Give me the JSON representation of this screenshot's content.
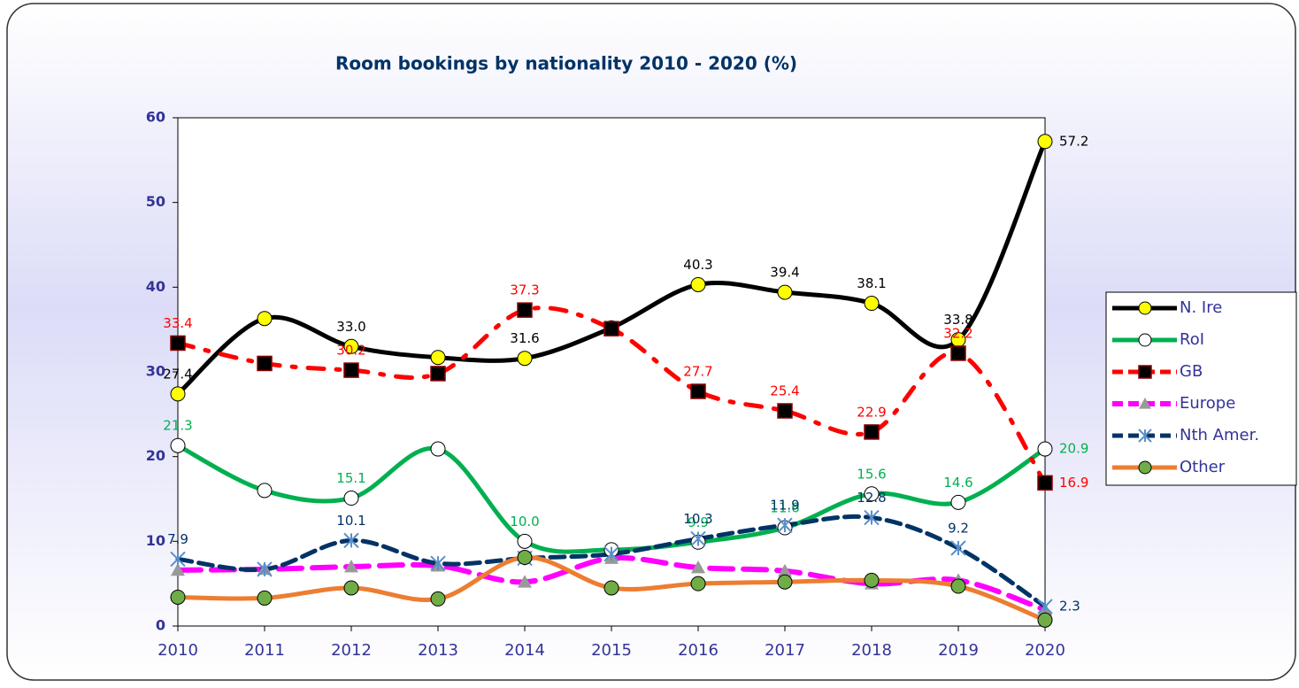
{
  "chart_data": {
    "type": "line",
    "title": "Room bookings by nationality 2010 - 2020 (%)",
    "categories": [
      "2010",
      "2011",
      "2012",
      "2013",
      "2014",
      "2015",
      "2016",
      "2017",
      "2018",
      "2019",
      "2020"
    ],
    "ylim": [
      0,
      60
    ],
    "yticks": [
      0,
      10,
      20,
      30,
      40,
      50,
      60
    ],
    "legend": "right",
    "smooth": true,
    "series": [
      {
        "name": "N. Ire",
        "color": "#000000",
        "marker": "circle",
        "marker_color": "#ffff00",
        "dash": "solid",
        "values": [
          27.4,
          36.3,
          33.0,
          31.7,
          31.6,
          35.2,
          40.3,
          39.4,
          38.1,
          33.8,
          57.2
        ],
        "value_labels": [
          "27.4",
          null,
          "33.0",
          null,
          "31.6",
          null,
          "40.3",
          "39.4",
          "38.1",
          "33.8",
          "57.2"
        ]
      },
      {
        "name": "RoI",
        "color": "#00b050",
        "marker": "circle",
        "marker_color": "#ffffff",
        "dash": "solid",
        "values": [
          21.3,
          16.0,
          15.1,
          20.9,
          10.0,
          9.0,
          9.9,
          11.6,
          15.6,
          14.6,
          20.9
        ],
        "value_labels": [
          "21.3",
          null,
          "15.1",
          null,
          "10.0",
          null,
          "9.9",
          "11.6",
          "15.6",
          "14.6",
          "20.9"
        ]
      },
      {
        "name": "GB",
        "color": "#ff0000",
        "marker": "square",
        "marker_color": "#000000",
        "dash": "dashdot",
        "values": [
          33.4,
          31.0,
          30.2,
          29.8,
          37.3,
          35.1,
          27.7,
          25.4,
          22.9,
          32.2,
          16.9
        ],
        "value_labels": [
          "33.4",
          null,
          "30.2",
          null,
          "37.3",
          null,
          "27.7",
          "25.4",
          "22.9",
          "32.2",
          "16.9"
        ]
      },
      {
        "name": "Europe",
        "color": "#ff00ff",
        "marker": "triangle",
        "marker_color": "#999999",
        "dash": "longdash",
        "values": [
          6.6,
          6.7,
          7.0,
          7.1,
          5.2,
          8.0,
          6.9,
          6.5,
          5.0,
          5.4,
          1.9
        ]
      },
      {
        "name": "Nth Amer.",
        "color": "#003366",
        "marker": "star",
        "marker_color": "#5b8fc9",
        "dash": "dash",
        "values": [
          7.9,
          6.7,
          10.1,
          7.4,
          8.0,
          8.5,
          10.3,
          11.9,
          12.8,
          9.2,
          2.3
        ],
        "value_labels": [
          "7.9",
          null,
          "10.1",
          null,
          null,
          null,
          "10.3",
          "11.9",
          "12.8",
          "9.2",
          "2.3"
        ]
      },
      {
        "name": "Other",
        "color": "#ed7d31",
        "marker": "circle",
        "marker_color": "#70ad47",
        "dash": "solid",
        "values": [
          3.4,
          3.3,
          4.5,
          3.2,
          8.1,
          4.5,
          5.0,
          5.2,
          5.4,
          4.7,
          0.7
        ]
      }
    ]
  }
}
